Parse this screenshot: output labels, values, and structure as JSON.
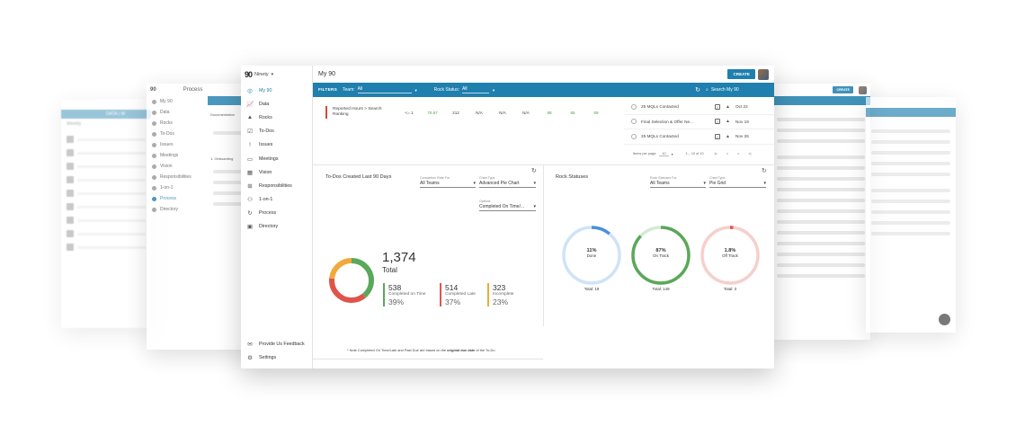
{
  "app": {
    "brand_logo": "90",
    "brand_name": "Ninety",
    "page_title": "My 90",
    "create_label": "CREATE"
  },
  "sidebar": {
    "items": [
      {
        "label": "My 90",
        "icon": "target-icon"
      },
      {
        "label": "Data",
        "icon": "chart-line-icon"
      },
      {
        "label": "Rocks",
        "icon": "mountain-icon"
      },
      {
        "label": "To-Dos",
        "icon": "checkbox-icon"
      },
      {
        "label": "Issues",
        "icon": "exclamation-icon"
      },
      {
        "label": "Meetings",
        "icon": "chat-icon"
      },
      {
        "label": "Vision",
        "icon": "building-icon"
      },
      {
        "label": "Responsibilities",
        "icon": "org-chart-icon"
      },
      {
        "label": "1-on-1",
        "icon": "people-icon"
      },
      {
        "label": "Process",
        "icon": "cycle-icon"
      },
      {
        "label": "Directory",
        "icon": "contacts-icon"
      }
    ],
    "bottom": [
      {
        "label": "Provide Us Feedback",
        "icon": "feedback-icon"
      },
      {
        "label": "Settings",
        "icon": "gear-icon"
      }
    ]
  },
  "filters": {
    "label": "FILTERS",
    "team_label": "Team:",
    "team_value": "All",
    "rock_status_label": "Rock Status:",
    "rock_status_value": "All",
    "search_placeholder": "Search My 90"
  },
  "rock_row": {
    "name": "Reported Hours > Search Ranking",
    "cells": [
      "<= 1",
      "70.67",
      "212",
      "N/A",
      "N/A",
      "N/A",
      "88",
      "65",
      "59"
    ]
  },
  "dated_items": [
    {
      "name": "25 MQLs Contacted",
      "date": "Oct 22"
    },
    {
      "name": "Final Selection & Offer Ne...",
      "date": "Nov 19"
    },
    {
      "name": "25 MQLs Contacted",
      "date": "Nov 26"
    }
  ],
  "pager": {
    "items_per_page_label": "Items per page:",
    "items_per_page": "10",
    "range": "1 – 10 of 10"
  },
  "todos_widget": {
    "title": "To-Dos Created Last 90 Days",
    "completion_rate_label": "Completion Rate For",
    "completion_rate_value": "All Teams",
    "chart_type_label": "Chart Type",
    "chart_type_value": "Advanced Pie Chart",
    "options_label": "Options",
    "options_value": "Completed On Time/...",
    "total_value": "1,374",
    "total_label": "Total",
    "stats": [
      {
        "value": "538",
        "label": "Completed on Time",
        "pct": "39%",
        "color": "#5aa85a"
      },
      {
        "value": "514",
        "label": "Completed Late",
        "pct": "37%",
        "color": "#e0544a"
      },
      {
        "value": "323",
        "label": "Incomplete",
        "pct": "23%",
        "color": "#f2a93b"
      }
    ],
    "footnote_pre": "* Note Completed On Time/Late and Past Due are based on the ",
    "footnote_bold": "original due date",
    "footnote_post": " of the To-Do"
  },
  "rocks_widget": {
    "title": "Rock Statuses",
    "statuses_label": "Rock Statuses For",
    "statuses_value": "All Teams",
    "chart_type_label": "Chart Type",
    "chart_type_value": "Pie Grid",
    "rings": [
      {
        "pct_text": "11%",
        "label": "Done",
        "total": "Total: 19",
        "fraction": 0.11,
        "color": "#4a90d9",
        "track": "#cfe3f7"
      },
      {
        "pct_text": "87%",
        "label": "On Track",
        "total": "Total: 149",
        "fraction": 0.87,
        "color": "#5aa85a",
        "track": "#d3ead3"
      },
      {
        "pct_text": "1.8%",
        "label": "Off Track",
        "total": "Total: 3",
        "fraction": 0.018,
        "color": "#e0544a",
        "track": "#f6cfcc"
      }
    ]
  },
  "bg_left": {
    "title": "Process",
    "sidebar": [
      "My 90",
      "Data",
      "Rocks",
      "To-Dos",
      "Issues",
      "Meetings",
      "Vision",
      "Responsibilities",
      "1-on-1",
      "Process",
      "Directory"
    ],
    "tab": "Documentation",
    "section": "1. Onboarding"
  },
  "bg_far_left": {
    "header": "DATA | W",
    "tab": "Weekly"
  }
}
